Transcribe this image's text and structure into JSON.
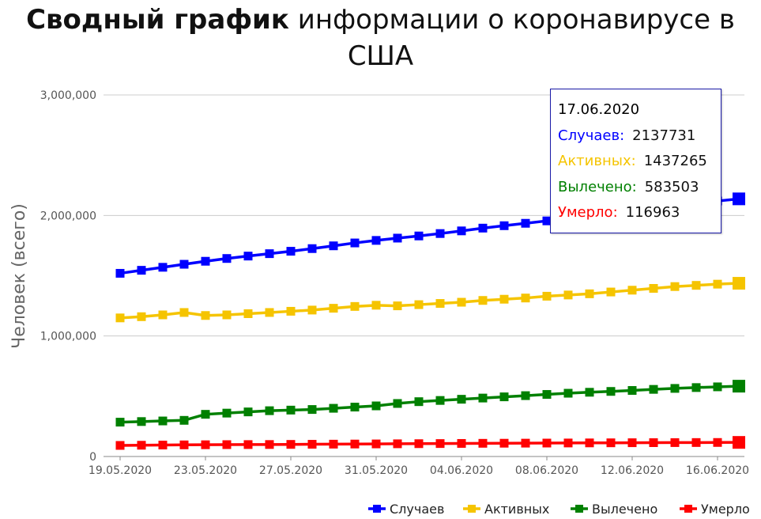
{
  "title": {
    "bold": "Сводный график",
    "rest": "информации о коронавирусе в США"
  },
  "tooltip": {
    "date": "17.06.2020",
    "rows": [
      {
        "label": "Случаев:",
        "value": "2137731",
        "color": "#0000ff"
      },
      {
        "label": "Активных:",
        "value": "1437265",
        "color": "#f5c400"
      },
      {
        "label": "Вылечено:",
        "value": "583503",
        "color": "#008000"
      },
      {
        "label": "Умерло:",
        "value": "116963",
        "color": "#ff0000"
      }
    ]
  },
  "chart_data": {
    "type": "line",
    "ylabel": "Человек (всего)",
    "ylim": [
      0,
      3000000
    ],
    "y_ticks": [
      "0",
      "1,000,000",
      "2,000,000",
      "3,000,000"
    ],
    "x_tick_labels": [
      "19.05.2020",
      "23.05.2020",
      "27.05.2020",
      "31.05.2020",
      "04.06.2020",
      "08.06.2020",
      "12.06.2020",
      "16.06.2020"
    ],
    "x": [
      "19.05.2020",
      "20.05.2020",
      "21.05.2020",
      "22.05.2020",
      "23.05.2020",
      "24.05.2020",
      "25.05.2020",
      "26.05.2020",
      "27.05.2020",
      "28.05.2020",
      "29.05.2020",
      "30.05.2020",
      "31.05.2020",
      "01.06.2020",
      "02.06.2020",
      "03.06.2020",
      "04.06.2020",
      "05.06.2020",
      "06.06.2020",
      "07.06.2020",
      "08.06.2020",
      "09.06.2020",
      "10.06.2020",
      "11.06.2020",
      "12.06.2020",
      "13.06.2020",
      "14.06.2020",
      "15.06.2020",
      "16.06.2020",
      "17.06.2020"
    ],
    "series": [
      {
        "name": "Случаев",
        "color": "#0000ff",
        "values": [
          1520000,
          1545000,
          1570000,
          1595000,
          1620000,
          1643000,
          1663000,
          1683000,
          1703000,
          1725000,
          1748000,
          1772000,
          1793000,
          1812000,
          1830000,
          1850000,
          1872000,
          1895000,
          1915000,
          1935000,
          1955000,
          1975000,
          1995000,
          2018000,
          2042000,
          2065000,
          2088000,
          2100000,
          2120000,
          2137731
        ]
      },
      {
        "name": "Активных",
        "color": "#f5c400",
        "values": [
          1150000,
          1160000,
          1175000,
          1195000,
          1170000,
          1175000,
          1185000,
          1195000,
          1205000,
          1215000,
          1230000,
          1245000,
          1255000,
          1250000,
          1260000,
          1270000,
          1280000,
          1295000,
          1305000,
          1315000,
          1330000,
          1340000,
          1350000,
          1365000,
          1380000,
          1395000,
          1410000,
          1420000,
          1430000,
          1437265
        ]
      },
      {
        "name": "Вылечено",
        "color": "#008000",
        "values": [
          285000,
          290000,
          295000,
          300000,
          350000,
          360000,
          370000,
          380000,
          385000,
          390000,
          400000,
          410000,
          420000,
          440000,
          455000,
          465000,
          475000,
          485000,
          495000,
          505000,
          515000,
          525000,
          533000,
          540000,
          548000,
          557000,
          565000,
          572000,
          578000,
          583503
        ]
      },
      {
        "name": "Умерло",
        "color": "#ff0000",
        "values": [
          92000,
          93500,
          95000,
          96500,
          97500,
          98500,
          99000,
          99500,
          100500,
          101500,
          102500,
          103500,
          104500,
          105500,
          106500,
          107500,
          108500,
          109500,
          110200,
          110800,
          111500,
          112200,
          112900,
          113600,
          114300,
          114900,
          115400,
          115900,
          116400,
          116963
        ]
      }
    ]
  }
}
